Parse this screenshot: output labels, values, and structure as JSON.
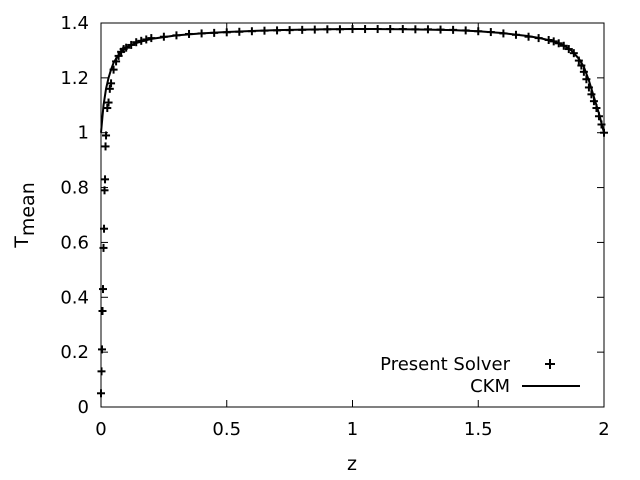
{
  "chart_data": {
    "type": "line",
    "xlabel": "z",
    "ylabel": "T",
    "ylabel_subscript": "mean",
    "xlim": [
      0,
      2
    ],
    "ylim": [
      0,
      1.4
    ],
    "x_ticks": [
      0,
      0.5,
      1,
      1.5,
      2
    ],
    "x_tick_labels": [
      "0",
      "0.5",
      "1",
      "1.5",
      "2"
    ],
    "y_ticks": [
      0,
      0.2,
      0.4,
      0.6,
      0.8,
      1.0,
      1.2,
      1.4
    ],
    "y_tick_labels": [
      "0",
      "0.2",
      "0.4",
      "0.6",
      "0.8",
      "1",
      "1.2",
      "1.4"
    ],
    "grid": false,
    "legend_position": "bottom-right",
    "colors": {
      "axis": "#000000",
      "series": "#000000"
    },
    "series": [
      {
        "name": "Present Solver",
        "marker": "plus",
        "x": [
          0.0,
          0.002,
          0.004,
          0.006,
          0.008,
          0.01,
          0.012,
          0.014,
          0.016,
          0.018,
          0.02,
          0.025,
          0.03,
          0.035,
          0.04,
          0.05,
          0.06,
          0.07,
          0.08,
          0.09,
          0.1,
          0.12,
          0.14,
          0.16,
          0.18,
          0.2,
          0.25,
          0.3,
          0.35,
          0.4,
          0.45,
          0.5,
          0.55,
          0.6,
          0.65,
          0.7,
          0.75,
          0.8,
          0.85,
          0.9,
          0.95,
          1.0,
          1.05,
          1.1,
          1.15,
          1.2,
          1.25,
          1.3,
          1.35,
          1.4,
          1.45,
          1.5,
          1.55,
          1.6,
          1.65,
          1.7,
          1.74,
          1.78,
          1.8,
          1.82,
          1.84,
          1.86,
          1.88,
          1.9,
          1.91,
          1.92,
          1.93,
          1.94,
          1.95,
          1.96,
          1.97,
          1.98,
          1.99,
          2.0
        ],
        "y": [
          0.05,
          0.13,
          0.21,
          0.35,
          0.43,
          0.58,
          0.65,
          0.79,
          0.83,
          0.95,
          0.99,
          1.09,
          1.11,
          1.16,
          1.18,
          1.23,
          1.26,
          1.28,
          1.295,
          1.305,
          1.31,
          1.32,
          1.33,
          1.335,
          1.34,
          1.345,
          1.35,
          1.355,
          1.36,
          1.362,
          1.364,
          1.366,
          1.368,
          1.37,
          1.372,
          1.373,
          1.374,
          1.375,
          1.376,
          1.377,
          1.377,
          1.378,
          1.378,
          1.378,
          1.378,
          1.378,
          1.377,
          1.377,
          1.376,
          1.375,
          1.373,
          1.37,
          1.367,
          1.362,
          1.357,
          1.35,
          1.345,
          1.338,
          1.333,
          1.326,
          1.317,
          1.305,
          1.29,
          1.263,
          1.245,
          1.222,
          1.195,
          1.165,
          1.14,
          1.115,
          1.09,
          1.06,
          1.03,
          1.0
        ]
      },
      {
        "name": "CKM",
        "marker": "line",
        "x": [
          0.0,
          0.01,
          0.02,
          0.03,
          0.04,
          0.05,
          0.06,
          0.08,
          0.1,
          0.12,
          0.15,
          0.2,
          0.3,
          0.4,
          0.5,
          0.6,
          0.7,
          0.8,
          0.9,
          1.0,
          1.1,
          1.2,
          1.3,
          1.4,
          1.5,
          1.6,
          1.7,
          1.75,
          1.8,
          1.84,
          1.87,
          1.9,
          1.92,
          1.94,
          1.96,
          1.98,
          2.0
        ],
        "y": [
          1.0,
          1.1,
          1.16,
          1.2,
          1.23,
          1.255,
          1.27,
          1.295,
          1.31,
          1.32,
          1.33,
          1.342,
          1.355,
          1.362,
          1.367,
          1.371,
          1.374,
          1.376,
          1.377,
          1.378,
          1.378,
          1.377,
          1.376,
          1.374,
          1.37,
          1.363,
          1.352,
          1.344,
          1.333,
          1.318,
          1.3,
          1.27,
          1.24,
          1.19,
          1.13,
          1.07,
          1.0
        ]
      }
    ]
  }
}
